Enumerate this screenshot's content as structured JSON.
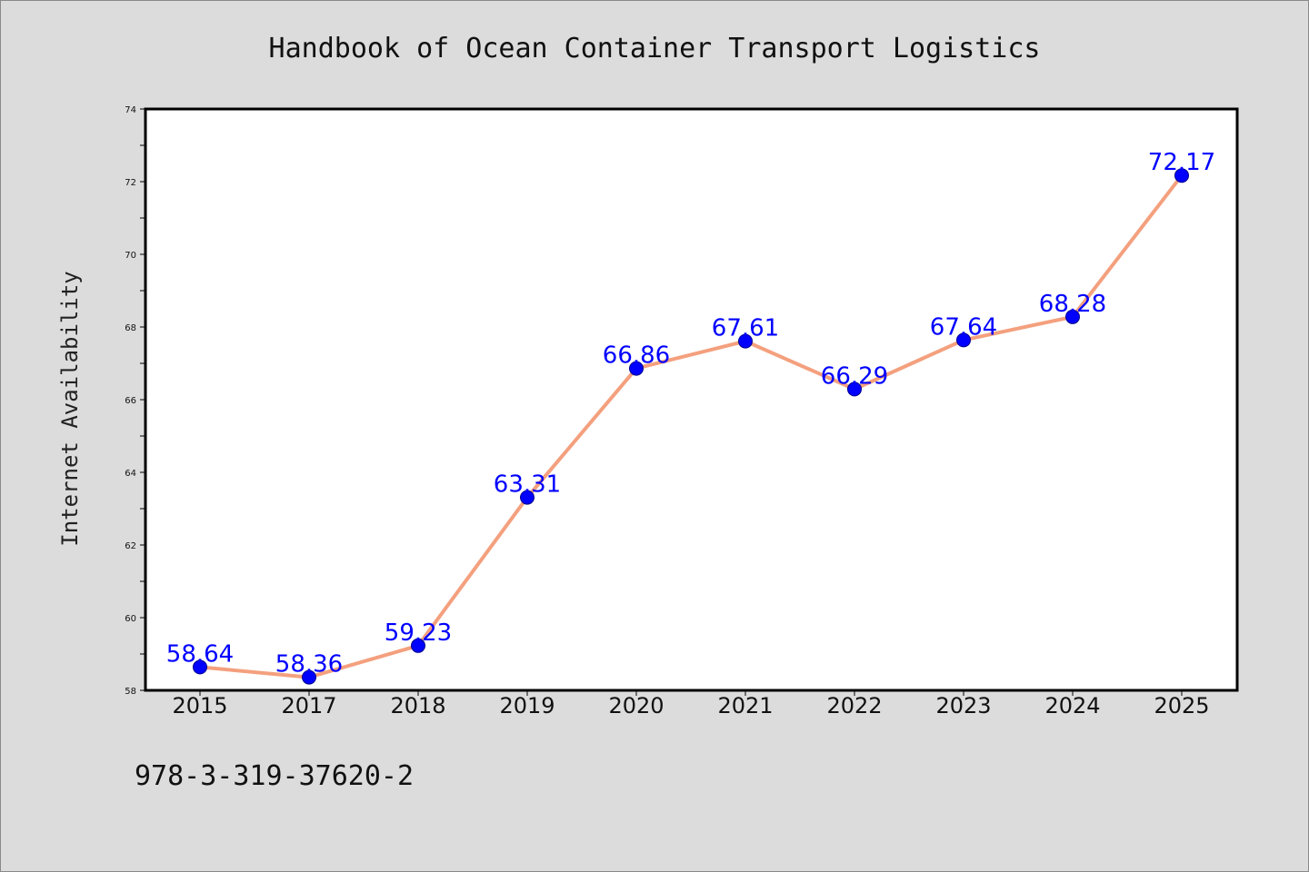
{
  "chart_data": {
    "type": "line",
    "title": "Handbook of Ocean Container Transport Logistics",
    "ylabel": "Internet Availability",
    "xlabel": "",
    "categories": [
      "2015",
      "2017",
      "2018",
      "2019",
      "2020",
      "2021",
      "2022",
      "2023",
      "2024",
      "2025"
    ],
    "values": [
      58.64,
      58.36,
      59.23,
      63.31,
      66.86,
      67.61,
      66.29,
      67.64,
      68.28,
      72.17
    ],
    "data_labels": [
      "58.64",
      "58.36",
      "59.23",
      "63.31",
      "66.86",
      "67.61",
      "66.29",
      "67.64",
      "68.28",
      "72.17"
    ],
    "ylim": [
      58,
      74
    ],
    "yticks": [
      "58",
      "60",
      "62",
      "64",
      "66",
      "68",
      "70",
      "72",
      "74"
    ],
    "grid": false,
    "line_color": "#f4a07e",
    "marker_color": "#0000ff"
  },
  "footer": {
    "isbn": "978-3-319-37620-2"
  }
}
